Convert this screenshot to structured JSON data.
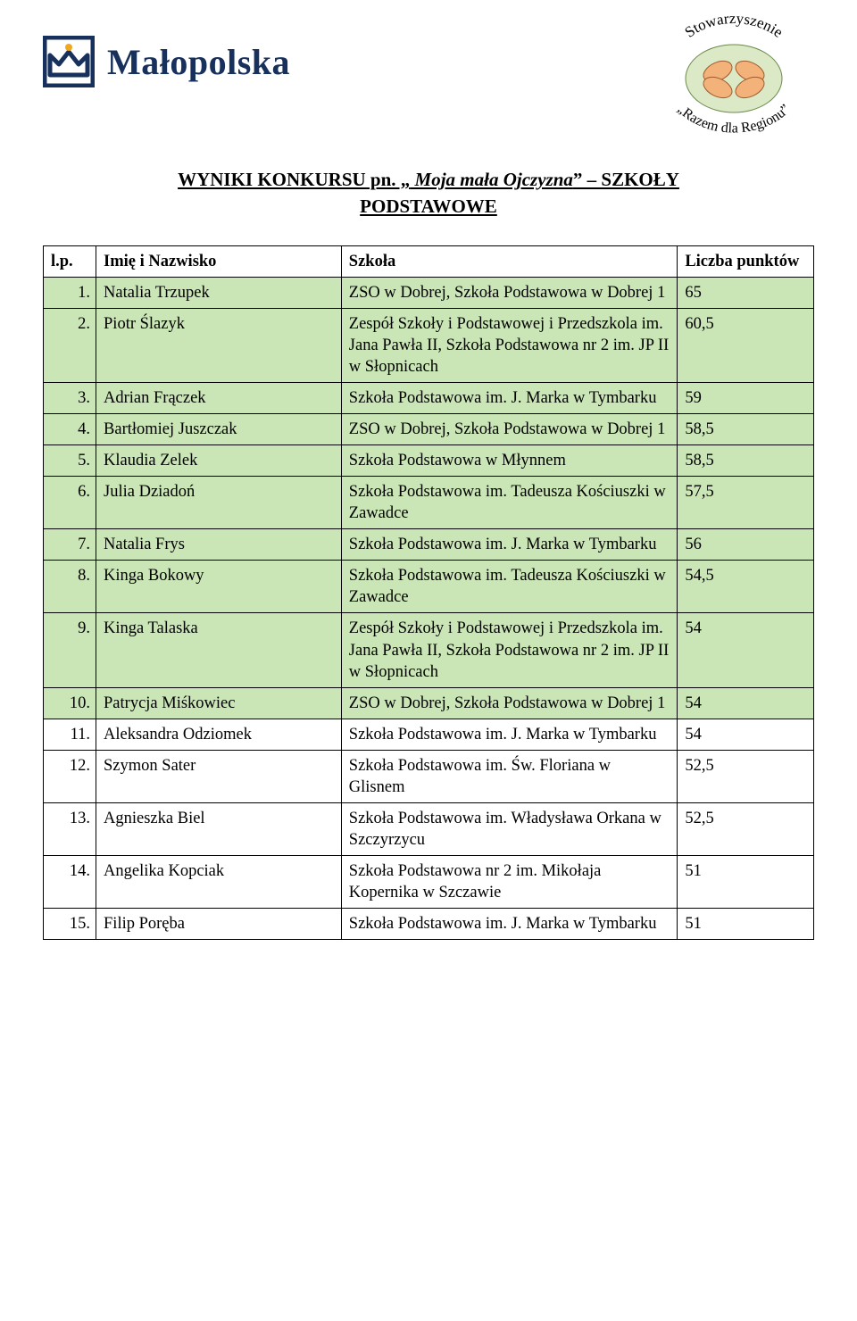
{
  "brand": {
    "malopolska": "Małopolska",
    "crown_color_blue": "#18305c",
    "crown_color_gold": "#f0a81e",
    "assoc_top": "Stowarzyszenie",
    "assoc_bottom": "„Razem dla Regionu”"
  },
  "title": {
    "line1_plain_a": "WYNIKI KONKURSU pn. „",
    "line1_italic": " Moja mała Ojczyzna",
    "line1_plain_b": "” – SZKOŁY",
    "line2": "PODSTAWOWE"
  },
  "table": {
    "headers": {
      "lp": "l.p.",
      "name": "Imię i Nazwisko",
      "school": "Szkoła",
      "points": "Liczba punktów"
    },
    "green_row_bg": "#cae5b6",
    "border_color": "#000000",
    "rows": [
      {
        "lp": "1.",
        "name": "Natalia Trzupek",
        "school": "ZSO w Dobrej, Szkoła Podstawowa w Dobrej 1",
        "points": "65",
        "hl": true
      },
      {
        "lp": "2.",
        "name": "Piotr Ślazyk",
        "school": "Zespół Szkoły i Podstawowej i Przedszkola im. Jana Pawła II, Szkoła Podstawowa nr 2 im. JP II w Słopnicach",
        "points": "60,5",
        "hl": true
      },
      {
        "lp": "3.",
        "name": "Adrian Frączek",
        "school": "Szkoła Podstawowa im. J. Marka w Tymbarku",
        "points": "59",
        "hl": true
      },
      {
        "lp": "4.",
        "name": "Bartłomiej Juszczak",
        "school": "ZSO w Dobrej, Szkoła Podstawowa w Dobrej 1",
        "points": "58,5",
        "hl": true
      },
      {
        "lp": "5.",
        "name": "Klaudia Zelek",
        "school": "Szkoła Podstawowa w Młynnem",
        "points": "58,5",
        "hl": true
      },
      {
        "lp": "6.",
        "name": "Julia Dziadoń",
        "school": "Szkoła Podstawowa im. Tadeusza Kościuszki w Zawadce",
        "points": "57,5",
        "hl": true
      },
      {
        "lp": "7.",
        "name": "Natalia Frys",
        "school": "Szkoła Podstawowa im. J. Marka w Tymbarku",
        "points": "56",
        "hl": true
      },
      {
        "lp": "8.",
        "name": "Kinga Bokowy",
        "school": "Szkoła Podstawowa im. Tadeusza Kościuszki w Zawadce",
        "points": "54,5",
        "hl": true
      },
      {
        "lp": "9.",
        "name": "Kinga Talaska",
        "school": "Zespół Szkoły i Podstawowej i Przedszkola im. Jana Pawła II, Szkoła Podstawowa nr 2 im. JP II w Słopnicach",
        "points": "54",
        "hl": true
      },
      {
        "lp": "10.",
        "name": "Patrycja Miśkowiec",
        "school": "ZSO w Dobrej, Szkoła Podstawowa w Dobrej 1",
        "points": "54",
        "hl": true
      },
      {
        "lp": "11.",
        "name": "Aleksandra Odziomek",
        "school": "Szkoła Podstawowa im. J. Marka w Tymbarku",
        "points": "54",
        "hl": false
      },
      {
        "lp": "12.",
        "name": "Szymon Sater",
        "school": "Szkoła Podstawowa im. Św. Floriana w Glisnem",
        "points": "52,5",
        "hl": false
      },
      {
        "lp": "13.",
        "name": "Agnieszka Biel",
        "school": "Szkoła Podstawowa im. Władysława Orkana w Szczyrzycu",
        "points": "52,5",
        "hl": false
      },
      {
        "lp": "14.",
        "name": "Angelika Kopciak",
        "school": "Szkoła Podstawowa nr 2 im. Mikołaja Kopernika w Szczawie",
        "points": "51",
        "hl": false
      },
      {
        "lp": "15.",
        "name": "Filip Poręba",
        "school": "Szkoła Podstawowa im. J. Marka w Tymbarku",
        "points": "51",
        "hl": false
      }
    ]
  }
}
